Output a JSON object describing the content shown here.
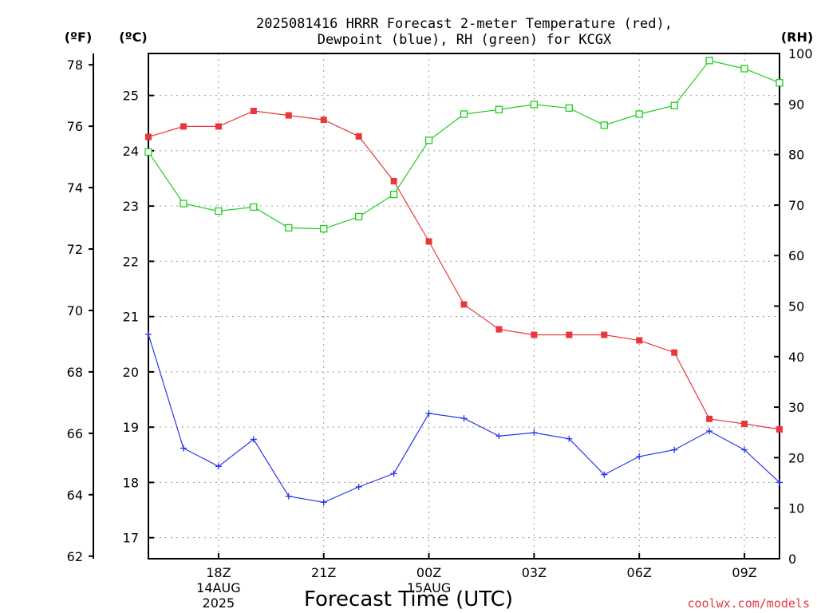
{
  "chart_data": {
    "type": "line",
    "title_line1": "2025081416 HRRR Forecast 2-meter Temperature (red),",
    "title_line2": "Dewpoint (blue), RH (green) for KCGX",
    "xlabel": "Forecast Time (UTC)",
    "credit": "coolwx.com/models",
    "units": {
      "fahrenheit": "(ºF)",
      "celsius": "(ºC)",
      "rh": "(RH)"
    },
    "x_hours": [
      16,
      17,
      18,
      19,
      20,
      21,
      22,
      23,
      24,
      25,
      26,
      27,
      28,
      29,
      30,
      31,
      32,
      33,
      34
    ],
    "x_ticks": [
      {
        "hour": 18,
        "label": "18Z",
        "sub1": "14AUG",
        "sub2": "2025"
      },
      {
        "hour": 21,
        "label": "21Z",
        "sub1": "",
        "sub2": ""
      },
      {
        "hour": 24,
        "label": "00Z",
        "sub1": "15AUG",
        "sub2": ""
      },
      {
        "hour": 27,
        "label": "03Z",
        "sub1": "",
        "sub2": ""
      },
      {
        "hour": 30,
        "label": "06Z",
        "sub1": "",
        "sub2": ""
      },
      {
        "hour": 33,
        "label": "09Z",
        "sub1": "",
        "sub2": ""
      }
    ],
    "xlim": [
      16,
      34
    ],
    "y_celsius": {
      "ylim": [
        16.62,
        25.76
      ],
      "ticks": [
        17,
        18,
        19,
        20,
        21,
        22,
        23,
        24,
        25
      ]
    },
    "y_fahrenheit": {
      "ticks": [
        62,
        64,
        66,
        68,
        70,
        72,
        74,
        76,
        78
      ]
    },
    "y_rh": {
      "ylim": [
        0,
        100
      ],
      "ticks": [
        0,
        10,
        20,
        30,
        40,
        50,
        60,
        70,
        80,
        90,
        100
      ]
    },
    "series": [
      {
        "key": "temperature",
        "color": "#e8373c",
        "marker": "filled-square",
        "axis": "celsius",
        "values": [
          24.25,
          24.44,
          24.44,
          24.72,
          24.64,
          24.56,
          24.26,
          23.45,
          22.36,
          21.22,
          20.77,
          20.67,
          20.67,
          20.67,
          20.57,
          20.35,
          19.15,
          19.06,
          18.96
        ]
      },
      {
        "key": "dewpoint",
        "color": "#2936e8",
        "marker": "plus",
        "axis": "celsius",
        "values": [
          20.68,
          18.62,
          18.29,
          18.78,
          17.75,
          17.64,
          17.92,
          18.16,
          19.25,
          19.16,
          18.84,
          18.9,
          18.79,
          18.14,
          18.47,
          18.59,
          18.93,
          18.59,
          18.0
        ]
      },
      {
        "key": "rh",
        "color": "#22cc22",
        "marker": "open-square",
        "axis": "rh",
        "values": [
          80.5,
          70.3,
          68.8,
          69.6,
          65.5,
          65.3,
          67.7,
          72.1,
          82.8,
          88.0,
          88.9,
          89.9,
          89.2,
          85.8,
          88.0,
          89.7,
          98.6,
          97.0,
          94.2
        ]
      }
    ],
    "grid": true
  }
}
